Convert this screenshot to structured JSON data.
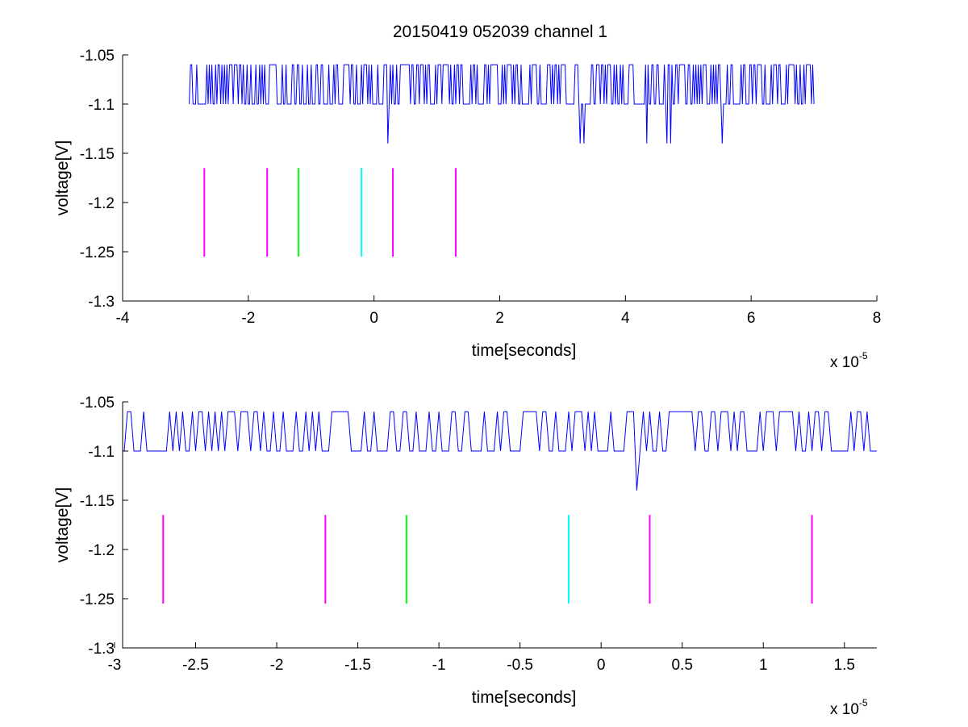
{
  "title": "20150419 052039 channel 1",
  "colors": {
    "signal": "#0000ff",
    "magenta": "#ff00ff",
    "green": "#00ff00",
    "cyan": "#00ffff"
  },
  "chart_data": [
    {
      "type": "line",
      "xlabel": "time[seconds]",
      "ylabel": "voltage[V]",
      "x_multiplier": "x 10",
      "x_exponent": "-5",
      "xlim": [
        -4,
        8
      ],
      "ylim": [
        -1.3,
        -1.05
      ],
      "xticks": [
        -4,
        -2,
        0,
        2,
        4,
        6,
        8
      ],
      "xtick_labels": [
        "-4",
        "-2",
        "0",
        "2",
        "4",
        "6",
        "8"
      ],
      "yticks": [
        -1.3,
        -1.25,
        -1.2,
        -1.15,
        -1.1,
        -1.05
      ],
      "ytick_labels": [
        "-1.3",
        "-1.25",
        "-1.2",
        "-1.15",
        "-1.1",
        "-1.05"
      ],
      "grid": false,
      "series": [
        {
          "kind": "signal",
          "x_range": [
            -2.94,
            7.0
          ],
          "levels": [
            -1.06,
            -1.1,
            -1.14
          ],
          "baseline": -1.1,
          "high": -1.06,
          "dip": -1.14,
          "color": "signal"
        }
      ],
      "markers": [
        {
          "x": -2.7,
          "y0": -1.255,
          "y1": -1.165,
          "color": "magenta"
        },
        {
          "x": -1.7,
          "y0": -1.255,
          "y1": -1.165,
          "color": "magenta"
        },
        {
          "x": -1.2,
          "y0": -1.255,
          "y1": -1.165,
          "color": "green"
        },
        {
          "x": -0.2,
          "y0": -1.255,
          "y1": -1.165,
          "color": "cyan"
        },
        {
          "x": 0.3,
          "y0": -1.255,
          "y1": -1.165,
          "color": "magenta"
        },
        {
          "x": 1.3,
          "y0": -1.255,
          "y1": -1.165,
          "color": "magenta"
        }
      ]
    },
    {
      "type": "line",
      "xlabel": "time[seconds]",
      "ylabel": "voltage[V]",
      "x_multiplier": "x 10",
      "x_exponent": "-5",
      "xlim": [
        -2.95,
        1.7
      ],
      "ylim": [
        -1.3,
        -1.05
      ],
      "xticks": [
        -3,
        -2.5,
        -2,
        -1.5,
        -1,
        -0.5,
        0,
        0.5,
        1,
        1.5
      ],
      "xtick_labels": [
        "-3",
        "-2.5",
        "-2",
        "-1.5",
        "-1",
        "-0.5",
        "0",
        "0.5",
        "1",
        "1.5"
      ],
      "yticks": [
        -1.3,
        -1.25,
        -1.2,
        -1.15,
        -1.1,
        -1.05
      ],
      "ytick_labels": [
        "-1.3",
        "-1.25",
        "-1.2",
        "-1.15",
        "-1.1",
        "-1.05"
      ],
      "grid": false,
      "series": [
        {
          "kind": "signal",
          "x_range": [
            -2.94,
            1.7
          ],
          "levels": [
            -1.06,
            -1.1,
            -1.14
          ],
          "baseline": -1.1,
          "high": -1.06,
          "dip": -1.14,
          "color": "signal"
        }
      ],
      "markers": [
        {
          "x": -2.7,
          "y0": -1.255,
          "y1": -1.165,
          "color": "magenta"
        },
        {
          "x": -1.7,
          "y0": -1.255,
          "y1": -1.165,
          "color": "magenta"
        },
        {
          "x": -1.2,
          "y0": -1.255,
          "y1": -1.165,
          "color": "green"
        },
        {
          "x": -0.2,
          "y0": -1.255,
          "y1": -1.165,
          "color": "cyan"
        },
        {
          "x": 0.3,
          "y0": -1.255,
          "y1": -1.165,
          "color": "magenta"
        },
        {
          "x": 1.3,
          "y0": -1.255,
          "y1": -1.165,
          "color": "magenta"
        }
      ]
    }
  ]
}
